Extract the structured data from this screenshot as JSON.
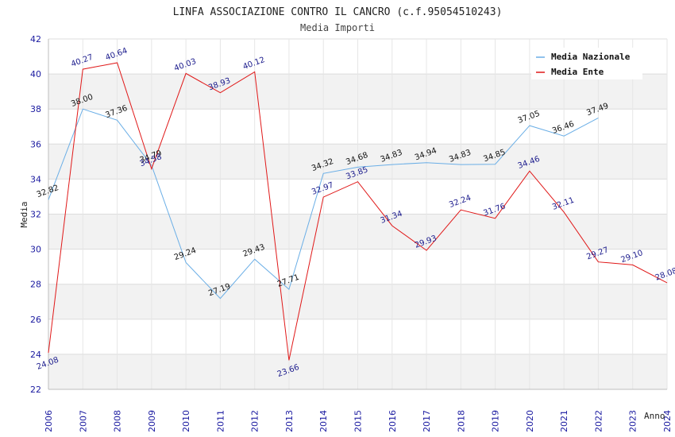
{
  "chart_data": {
    "type": "line",
    "title": "LINFA ASSOCIAZIONE CONTRO IL CANCRO (c.f.95054510243)",
    "subtitle": "Media Importi",
    "xlabel": "Anno",
    "ylabel": "Media",
    "ylim": [
      22,
      42
    ],
    "yticks": [
      22,
      24,
      26,
      28,
      30,
      32,
      34,
      36,
      38,
      40,
      42
    ],
    "x": [
      "2006",
      "2007",
      "2008",
      "2009",
      "2010",
      "2011",
      "2012",
      "2013",
      "2014",
      "2015",
      "2016",
      "2017",
      "2018",
      "2019",
      "2020",
      "2021",
      "2022",
      "2023",
      "2024"
    ],
    "grid": true,
    "legend_position": "top-right",
    "series": [
      {
        "name": "Media Nazionale",
        "color": "#6aaee6",
        "values": [
          32.82,
          38.0,
          37.36,
          34.79,
          29.24,
          27.19,
          29.43,
          27.71,
          34.32,
          34.68,
          34.83,
          34.94,
          34.83,
          34.85,
          37.05,
          36.46,
          37.49,
          null,
          null
        ],
        "labels": [
          "32.82",
          "38.00",
          "37.36",
          "34.79",
          "29.24",
          "27.19",
          "29.43",
          "27.71",
          "34.32",
          "34.68",
          "34.83",
          "34.94",
          "34.83",
          "34.85",
          "37.05",
          "36.46",
          "37.49",
          null,
          null
        ]
      },
      {
        "name": "Media Ente",
        "color": "#e01818",
        "values": [
          24.08,
          40.27,
          40.64,
          34.58,
          40.03,
          38.93,
          40.12,
          23.66,
          32.97,
          33.85,
          31.34,
          29.93,
          32.24,
          31.76,
          34.46,
          32.11,
          29.27,
          29.1,
          28.08
        ],
        "labels": [
          "24.08",
          "40.27",
          "40.64",
          "34.58",
          "40.03",
          "38.93",
          "40.12",
          "23.66",
          "32.97",
          "33.85",
          "31.34",
          "29.93",
          "32.24",
          "31.76",
          "34.46",
          "32.11",
          "29.27",
          "29.10",
          "28.08"
        ]
      }
    ]
  }
}
